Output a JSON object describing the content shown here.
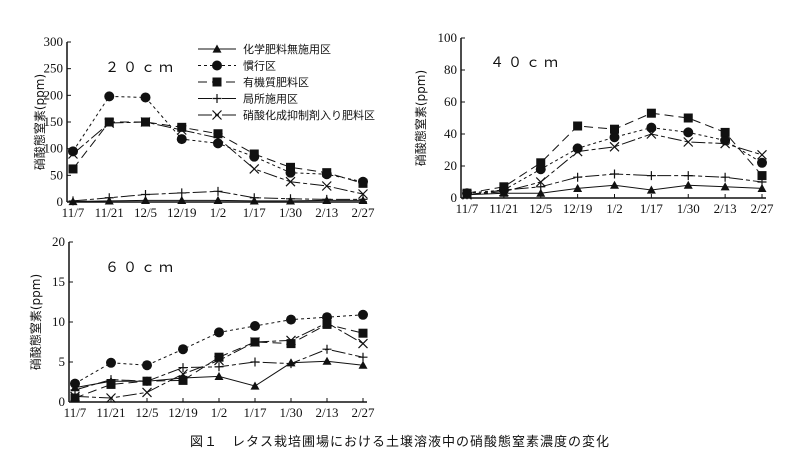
{
  "caption": "図１　レタス栽培圃場における土壌溶液中の硝酸態窒素濃度の変化",
  "legend": [
    {
      "name": "化学肥料無施用区",
      "marker": "triangle",
      "dash": "solid"
    },
    {
      "name": "慣行区",
      "marker": "circle",
      "dash": "dotted"
    },
    {
      "name": "有機質肥料区",
      "marker": "square",
      "dash": "dashed"
    },
    {
      "name": "局所施用区",
      "marker": "plus",
      "dash": "solid-dash"
    },
    {
      "name": "硝酸化成抑制剤入り肥料区",
      "marker": "x",
      "dash": "solid-dash"
    }
  ],
  "chart_data": [
    {
      "type": "line",
      "title": "２０ｃｍ",
      "ylabel": "硝酸態窒素(ppm)",
      "categories": [
        "11/7",
        "11/21",
        "12/5",
        "12/19",
        "1/2",
        "1/17",
        "1/30",
        "2/13",
        "2/27"
      ],
      "ylim": [
        0,
        300
      ],
      "yticks": [
        0,
        50,
        100,
        150,
        200,
        250,
        300
      ],
      "legend_position": "top-right",
      "series": [
        {
          "name": "化学肥料無施用区",
          "values": [
            1,
            2,
            3,
            3,
            3,
            2,
            2,
            3,
            3
          ]
        },
        {
          "name": "慣行区",
          "values": [
            95,
            198,
            196,
            118,
            110,
            85,
            55,
            52,
            38
          ]
        },
        {
          "name": "有機質肥料区",
          "values": [
            62,
            150,
            150,
            140,
            128,
            90,
            65,
            55,
            35
          ]
        },
        {
          "name": "局所施用区",
          "values": [
            2,
            8,
            14,
            17,
            20,
            8,
            6,
            5,
            5
          ]
        },
        {
          "name": "硝酸化成抑制剤入り肥料区",
          "values": [
            90,
            148,
            150,
            135,
            120,
            62,
            38,
            30,
            15
          ]
        }
      ]
    },
    {
      "type": "line",
      "title": "４０ｃｍ",
      "ylabel": "硝酸態窒素(ppm)",
      "categories": [
        "11/7",
        "11/21",
        "12/5",
        "12/19",
        "1/2",
        "1/17",
        "1/30",
        "2/13",
        "2/27"
      ],
      "ylim": [
        0,
        100
      ],
      "yticks": [
        0,
        20,
        40,
        60,
        80,
        100
      ],
      "series": [
        {
          "name": "化学肥料無施用区",
          "values": [
            2,
            3,
            3,
            6,
            8,
            5,
            8,
            7,
            6
          ]
        },
        {
          "name": "慣行区",
          "values": [
            3,
            5,
            18,
            31,
            38,
            44,
            41,
            36,
            22
          ]
        },
        {
          "name": "有機質肥料区",
          "values": [
            3,
            7,
            22,
            45,
            43,
            53,
            50,
            41,
            14
          ]
        },
        {
          "name": "局所施用区",
          "values": [
            2,
            5,
            7,
            13,
            15,
            14,
            14,
            13,
            10
          ]
        },
        {
          "name": "硝酸化成抑制剤入り肥料区",
          "values": [
            2,
            4,
            10,
            29,
            32,
            40,
            35,
            34,
            27
          ]
        }
      ]
    },
    {
      "type": "line",
      "title": "６０ｃｍ",
      "ylabel": "硝酸態窒素(ppm)",
      "categories": [
        "11/7",
        "11/21",
        "12/5",
        "12/19",
        "1/2",
        "1/17",
        "1/30",
        "2/13",
        "2/27"
      ],
      "ylim": [
        0,
        20
      ],
      "yticks": [
        0,
        5,
        10,
        15,
        20
      ],
      "series": [
        {
          "name": "化学肥料無施用区",
          "values": [
            1.8,
            2.6,
            2.6,
            3.0,
            3.2,
            2.0,
            4.9,
            5.1,
            4.6
          ]
        },
        {
          "name": "慣行区",
          "values": [
            2.3,
            4.9,
            4.6,
            6.6,
            8.7,
            9.5,
            10.3,
            10.6,
            10.9
          ]
        },
        {
          "name": "有機質肥料区",
          "values": [
            0.5,
            2.2,
            2.6,
            2.7,
            5.6,
            7.5,
            7.3,
            9.7,
            8.6
          ]
        },
        {
          "name": "局所施用区",
          "values": [
            1.5,
            2.8,
            2.6,
            4.3,
            4.4,
            5.0,
            4.8,
            6.6,
            5.6
          ]
        },
        {
          "name": "硝酸化成抑制剤入り肥料区",
          "values": [
            0.7,
            0.5,
            1.2,
            3.5,
            5.2,
            7.5,
            7.7,
            9.9,
            7.3
          ]
        }
      ]
    }
  ]
}
